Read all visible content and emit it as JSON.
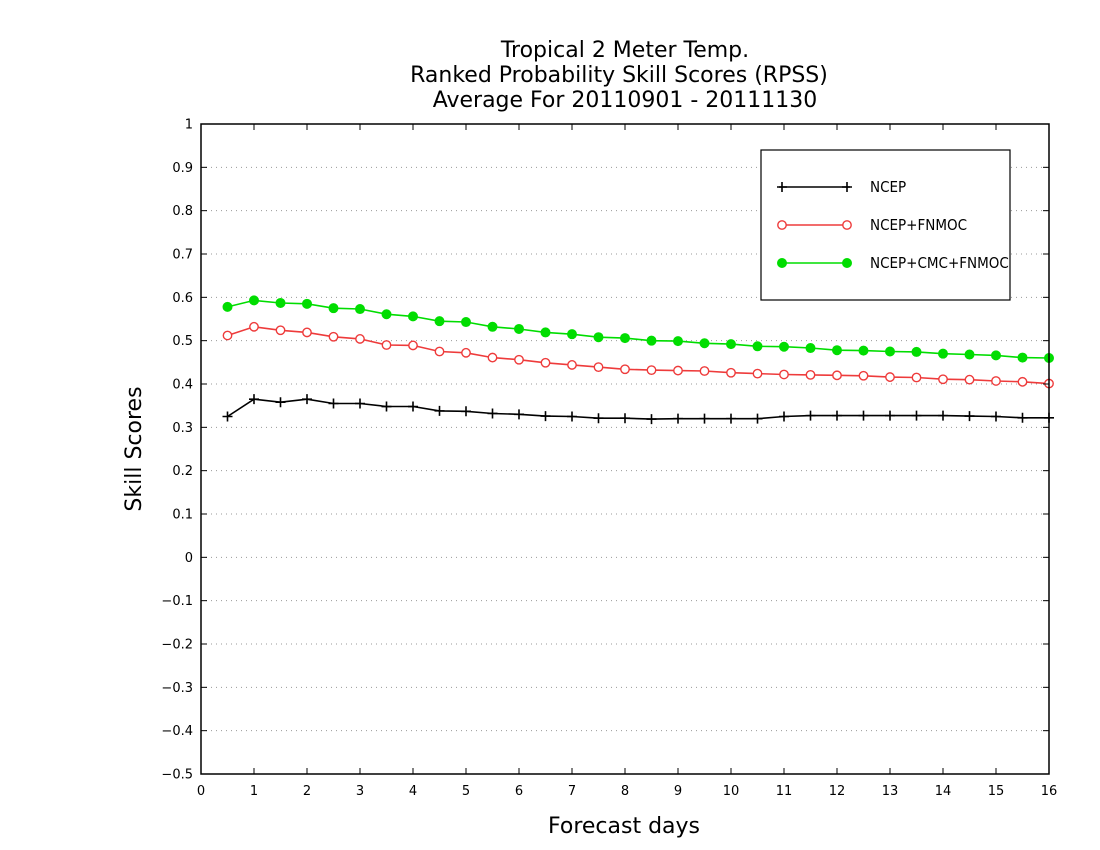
{
  "chart_data": {
    "type": "line",
    "title": [
      "Tropical 2 Meter Temp.",
      "Ranked Probability Skill Scores (RPSS)",
      "Average For 20110901 - 20111130"
    ],
    "xlabel": "Forecast days",
    "ylabel": "Skill Scores",
    "xlim": [
      0,
      16
    ],
    "ylim": [
      -0.5,
      1
    ],
    "xticks": [
      0,
      1,
      2,
      3,
      4,
      5,
      6,
      7,
      8,
      9,
      10,
      11,
      12,
      13,
      14,
      15,
      16
    ],
    "xtick_labels": [
      "0",
      "1",
      "2",
      "3",
      "4",
      "5",
      "6",
      "7",
      "8",
      "9",
      "10",
      "11",
      "12",
      "13",
      "14",
      "15",
      "16"
    ],
    "yticks": [
      -0.5,
      -0.4,
      -0.3,
      -0.2,
      -0.1,
      0,
      0.1,
      0.2,
      0.3,
      0.4,
      0.5,
      0.6,
      0.7,
      0.8,
      0.9,
      1
    ],
    "ytick_labels": [
      "−0.5",
      "−0.4",
      "−0.3",
      "−0.2",
      "−0.1",
      "0",
      "0.1",
      "0.2",
      "0.3",
      "0.4",
      "0.5",
      "0.6",
      "0.7",
      "0.8",
      "0.9",
      "1"
    ],
    "grid": "horizontal dotted",
    "legend_position": "top-right",
    "x": [
      0.5,
      1.0,
      1.5,
      2.0,
      2.5,
      3.0,
      3.5,
      4.0,
      4.5,
      5.0,
      5.5,
      6.0,
      6.5,
      7.0,
      7.5,
      8.0,
      8.5,
      9.0,
      9.5,
      10.0,
      10.5,
      11.0,
      11.5,
      12.0,
      12.5,
      13.0,
      13.5,
      14.0,
      14.5,
      15.0,
      15.5,
      16.0
    ],
    "series": [
      {
        "name": "NCEP",
        "color": "#000000",
        "marker": "plus",
        "values": [
          0.325,
          0.365,
          0.358,
          0.365,
          0.355,
          0.355,
          0.348,
          0.348,
          0.338,
          0.337,
          0.332,
          0.33,
          0.326,
          0.325,
          0.321,
          0.321,
          0.319,
          0.32,
          0.32,
          0.32,
          0.32,
          0.325,
          0.327,
          0.327,
          0.327,
          0.327,
          0.327,
          0.327,
          0.326,
          0.325,
          0.322,
          0.322
        ]
      },
      {
        "name": "NCEP+FNMOC",
        "color": "#ee3b3b",
        "marker": "open-circle",
        "values": [
          0.512,
          0.532,
          0.524,
          0.519,
          0.509,
          0.504,
          0.49,
          0.489,
          0.475,
          0.472,
          0.461,
          0.456,
          0.449,
          0.444,
          0.439,
          0.434,
          0.432,
          0.431,
          0.43,
          0.426,
          0.424,
          0.422,
          0.421,
          0.42,
          0.419,
          0.416,
          0.415,
          0.411,
          0.41,
          0.407,
          0.405,
          0.401
        ]
      },
      {
        "name": "NCEP+CMC+FNMOC",
        "color": "#00dd00",
        "marker": "filled-circle",
        "values": [
          0.578,
          0.593,
          0.587,
          0.585,
          0.575,
          0.573,
          0.561,
          0.556,
          0.545,
          0.543,
          0.532,
          0.527,
          0.519,
          0.515,
          0.508,
          0.506,
          0.5,
          0.499,
          0.494,
          0.492,
          0.487,
          0.486,
          0.483,
          0.478,
          0.477,
          0.475,
          0.474,
          0.47,
          0.468,
          0.466,
          0.461,
          0.46
        ]
      }
    ]
  }
}
